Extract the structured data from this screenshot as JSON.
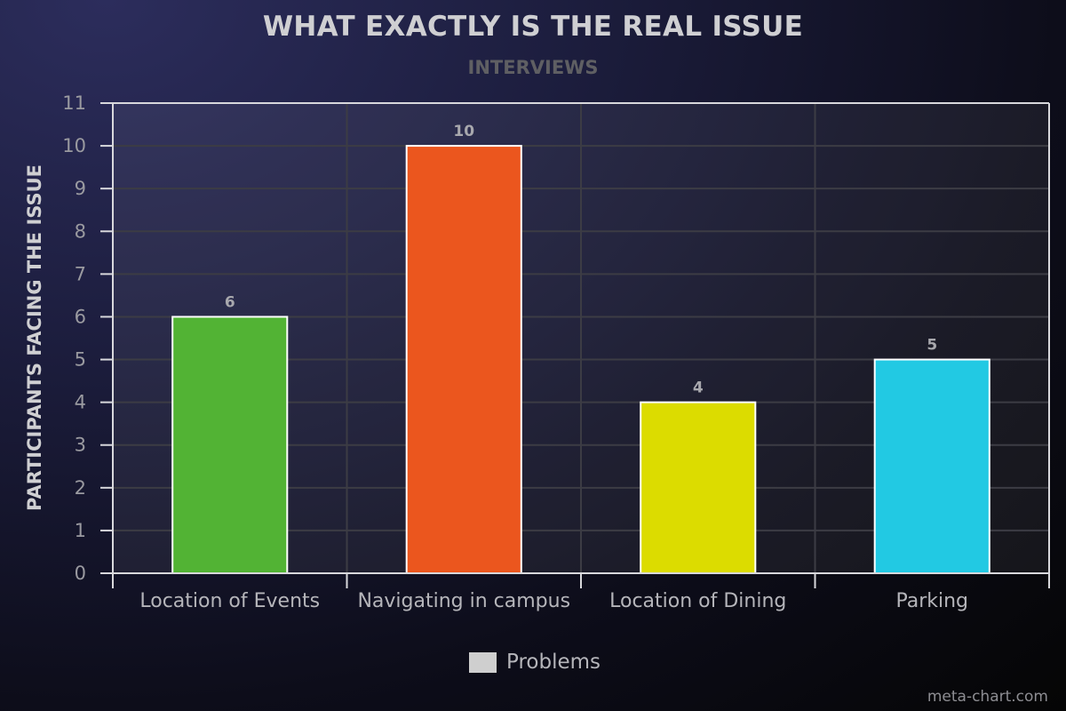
{
  "chart_data": {
    "type": "bar",
    "title": "WHAT EXACTLY IS THE REAL ISSUE",
    "subtitle": "INTERVIEWS",
    "xlabel": "",
    "ylabel": "PARTICIPANTS FACING THE ISSUE",
    "ylim": [
      0,
      11
    ],
    "yticks": [
      "0",
      "1",
      "2",
      "3",
      "4",
      "5",
      "6",
      "7",
      "8",
      "9",
      "10",
      "11"
    ],
    "categories": [
      "Location of Events",
      "Navigating in campus",
      "Location of Dining",
      "Parking"
    ],
    "series": [
      {
        "name": "Problems",
        "values": [
          6,
          10,
          4,
          5
        ],
        "data_labels": [
          "6",
          "10",
          "4",
          "5"
        ],
        "colors": [
          "#52b334",
          "#eb561e",
          "#dcdc00",
          "#22c9e3"
        ]
      }
    ],
    "grid": true,
    "legend": {
      "position": "bottom-center",
      "swatch_color": "#cfcfcf"
    },
    "credit": "meta-chart.com"
  }
}
